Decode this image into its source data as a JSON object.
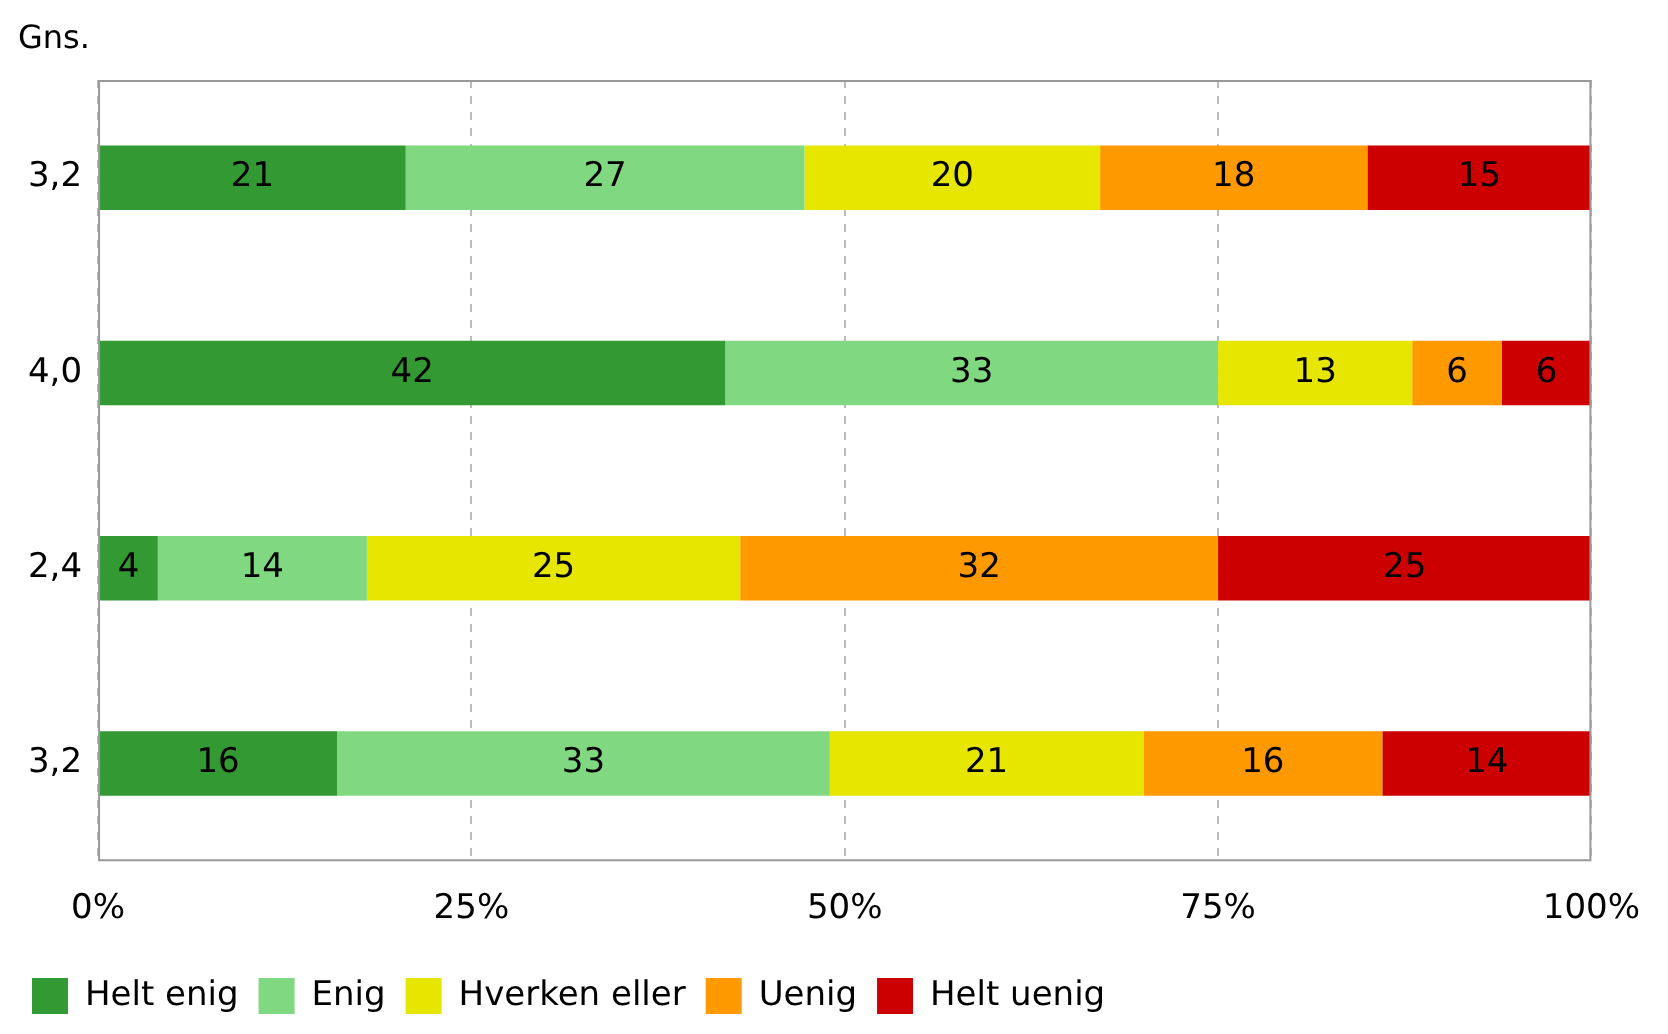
{
  "chart_data": {
    "type": "bar",
    "orientation": "horizontal",
    "stacked": true,
    "ylabel": "Gns.",
    "categories": [
      "3,2",
      "4,0",
      "2,4",
      "3,2"
    ],
    "xlim": [
      0,
      100
    ],
    "xticks": [
      {
        "value": 0,
        "label": "0%"
      },
      {
        "value": 25,
        "label": "25%"
      },
      {
        "value": 50,
        "label": "50%"
      },
      {
        "value": 75,
        "label": "75%"
      },
      {
        "value": 100,
        "label": "100%"
      }
    ],
    "grid": "x",
    "legend": "bottom",
    "series": [
      {
        "name": "Helt enig",
        "color": "#339933",
        "values": [
          20.6,
          42,
          4,
          16
        ],
        "value_labels": [
          "21",
          "42",
          "4",
          "16"
        ]
      },
      {
        "name": "Enig",
        "color": "#80d880",
        "values": [
          26.7,
          33,
          14,
          33
        ],
        "value_labels": [
          "27",
          "33",
          "14",
          "33"
        ]
      },
      {
        "name": "Hverken eller",
        "color": "#e6e600",
        "values": [
          19.8,
          13,
          25,
          21
        ],
        "value_labels": [
          "20",
          "13",
          "25",
          "21"
        ]
      },
      {
        "name": "Uenig",
        "color": "#ff9900",
        "values": [
          17.9,
          6,
          32,
          16
        ],
        "value_labels": [
          "18",
          "6",
          "32",
          "16"
        ]
      },
      {
        "name": "Helt uenig",
        "color": "#cc0000",
        "values": [
          15,
          6,
          25,
          14
        ],
        "value_labels": [
          "15",
          "6",
          "25",
          "14"
        ]
      }
    ]
  }
}
